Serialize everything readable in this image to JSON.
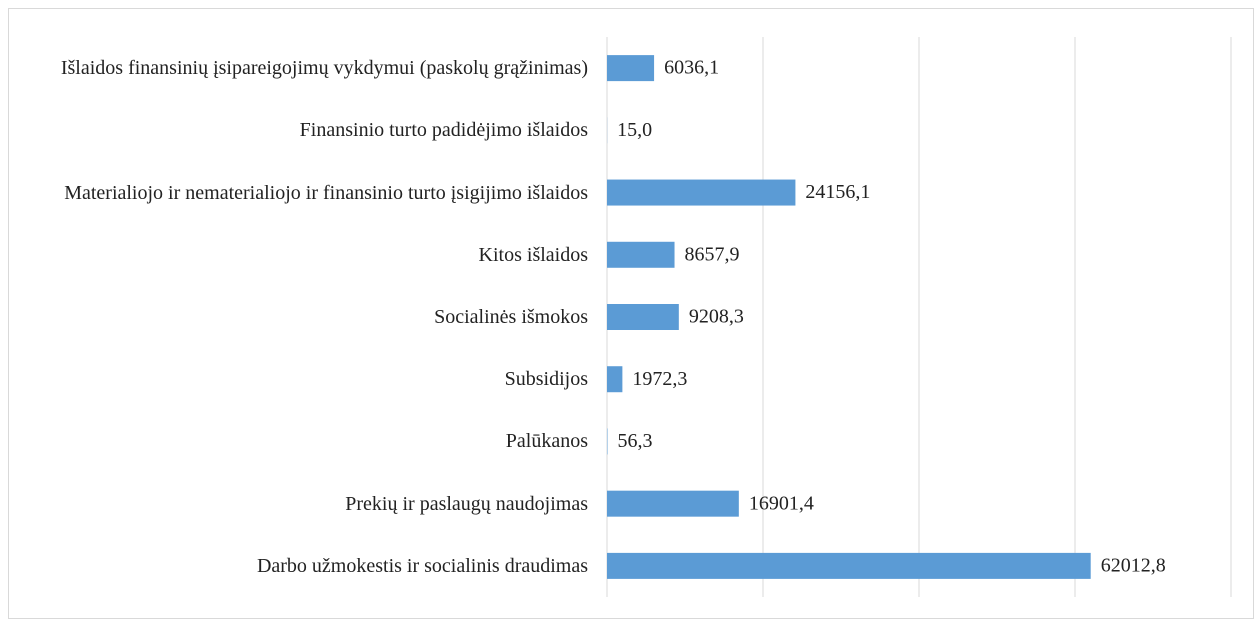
{
  "chart_data": {
    "type": "barh",
    "categories": [
      "Išlaidos finansinių įsipareigojimų vykdymui (paskolų grąžinimas)",
      "Finansinio turto padidėjimo išlaidos",
      "Materialiojo ir nematerialiojo ir finansinio turto įsigijimo išlaidos",
      "Kitos išlaidos",
      "Socialinės išmokos",
      "Subsidijos",
      "Palūkanos",
      "Prekių ir paslaugų naudojimas",
      "Darbo užmokestis ir socialinis draudimas"
    ],
    "values": [
      6036.1,
      15.0,
      24156.1,
      8657.9,
      9208.3,
      1972.3,
      56.3,
      16901.4,
      62012.8
    ],
    "value_labels": [
      "6036,1",
      "15,0",
      "24156,1",
      "8657,9",
      "9208,3",
      "1972,3",
      "56,3",
      "16901,4",
      "62012,8"
    ],
    "color": "#5b9bd5",
    "xlim": [
      0,
      80000
    ],
    "xticks": [
      0,
      20000,
      40000,
      60000,
      80000
    ],
    "grid": true
  }
}
